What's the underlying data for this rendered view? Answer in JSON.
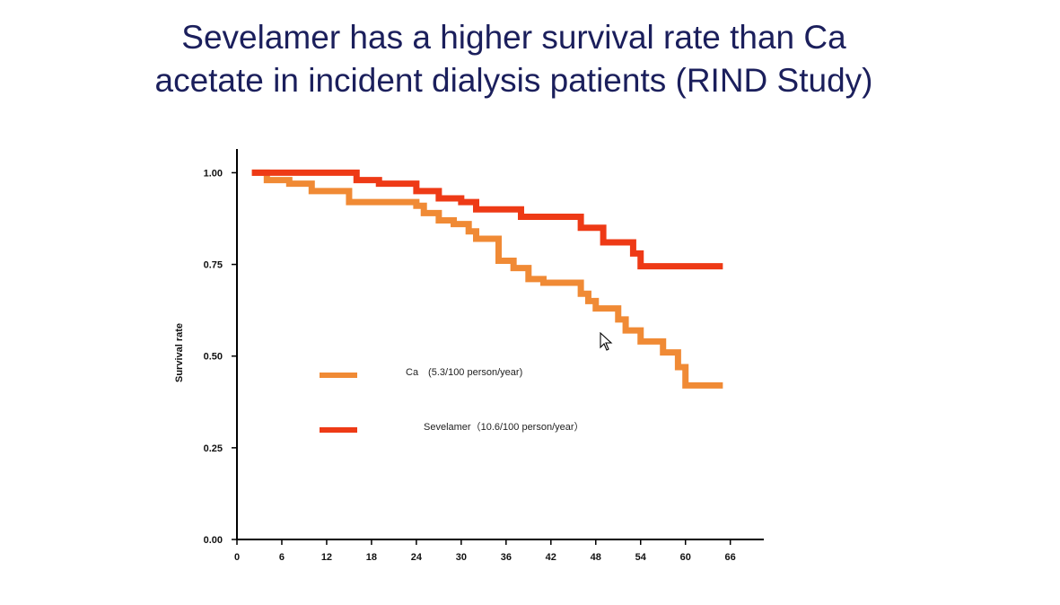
{
  "slide": {
    "title_line1": "Sevelamer has a higher survival rate than Ca",
    "title_line2": "acetate in incident dialysis patients (RIND Study)"
  },
  "chart_data": {
    "type": "line",
    "step": true,
    "xlim": [
      0,
      70
    ],
    "ylim": [
      0,
      1.05
    ],
    "x_ticks": [
      0,
      6,
      12,
      18,
      24,
      30,
      36,
      42,
      48,
      54,
      60,
      66
    ],
    "x_tick_labels": [
      "0",
      "6",
      "12",
      "18",
      "24",
      "30",
      "36",
      "42",
      "48",
      "54",
      "60",
      "66"
    ],
    "y_ticks": [
      0,
      0.25,
      0.5,
      0.75,
      1.0
    ],
    "y_tick_labels": [
      "0.00",
      "0.25",
      "0.50",
      "0.75",
      "1.00"
    ],
    "ylabel": "Survival rate",
    "xlabel": "",
    "grid": false,
    "legend_position": "center-left",
    "series": [
      {
        "name": "Ca　(5.3/100 person/year)",
        "color": "#f08a35",
        "x": [
          2,
          4,
          7,
          10,
          15,
          24,
          25,
          27,
          29,
          31,
          32,
          35,
          37,
          39,
          41,
          46,
          47,
          48,
          51,
          52,
          54,
          57,
          59,
          60,
          65
        ],
        "y": [
          1.0,
          0.98,
          0.97,
          0.95,
          0.92,
          0.91,
          0.89,
          0.87,
          0.86,
          0.84,
          0.82,
          0.76,
          0.74,
          0.71,
          0.7,
          0.67,
          0.65,
          0.63,
          0.6,
          0.57,
          0.54,
          0.51,
          0.47,
          0.42,
          0.42
        ]
      },
      {
        "name": "Sevelamer（10.6/100 person/year）",
        "color": "#ee3a16",
        "x": [
          2,
          16,
          19,
          24,
          27,
          30,
          32,
          38,
          46,
          49,
          53,
          54,
          65
        ],
        "y": [
          1.0,
          0.98,
          0.97,
          0.95,
          0.93,
          0.92,
          0.9,
          0.88,
          0.85,
          0.81,
          0.78,
          0.745,
          0.745
        ]
      }
    ]
  }
}
